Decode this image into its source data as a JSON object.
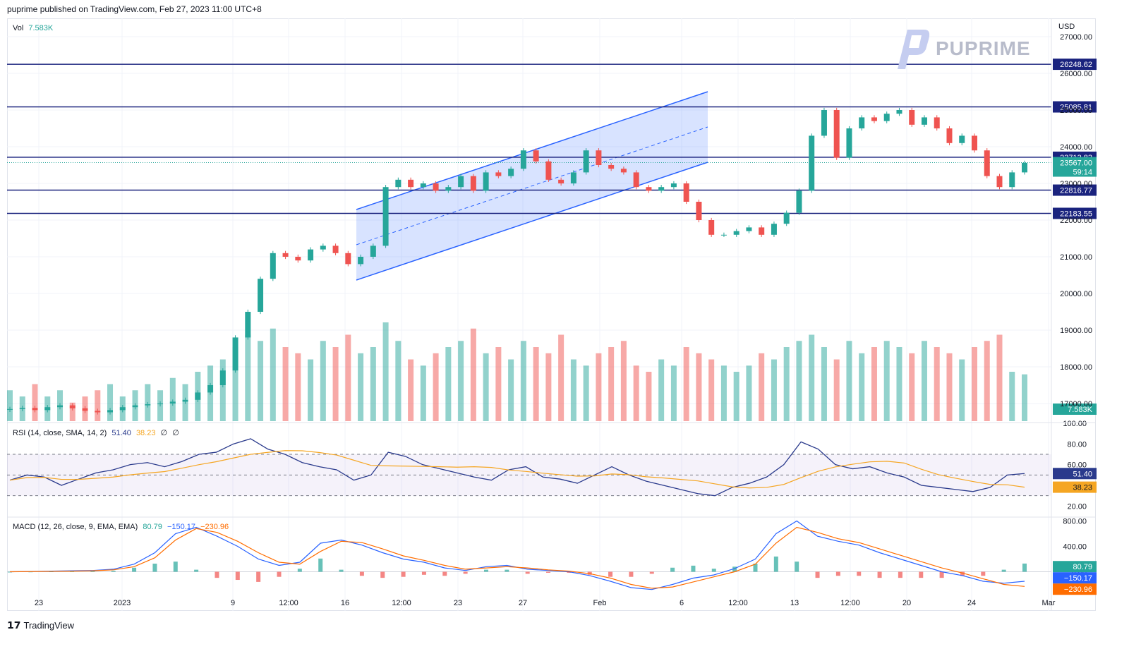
{
  "header": {
    "text": "puprime published on TradingView.com, Feb 27, 2023 11:00 UTC+8"
  },
  "brand": {
    "name": "PUPRIME"
  },
  "footer": {
    "text": "TradingView"
  },
  "vol_label": {
    "name": "Vol",
    "value": "7.583K"
  },
  "currency": "USD",
  "price_axis": [
    "27000.00",
    "26000.00",
    "25000.00",
    "24000.00",
    "23000.00",
    "22000.00",
    "21000.00",
    "20000.00",
    "19000.00",
    "18000.00",
    "17000.00"
  ],
  "levels": [
    {
      "value": 26248.62,
      "label": "26248.62"
    },
    {
      "value": 25085.81,
      "label": "25085.81"
    },
    {
      "value": 23713.83,
      "label": "23713.83"
    },
    {
      "value": 22816.77,
      "label": "22816.77"
    },
    {
      "value": 22183.55,
      "label": "22183.55"
    }
  ],
  "current_price": {
    "label": "23567.00",
    "countdown": "59:14",
    "value": 23567
  },
  "vol_badge": "7.583K",
  "x_axis": [
    {
      "label": "23",
      "x": 55
    },
    {
      "label": "2023",
      "x": 173
    },
    {
      "label": "9",
      "x": 330
    },
    {
      "label": "12:00",
      "x": 409
    },
    {
      "label": "16",
      "x": 489
    },
    {
      "label": "12:00",
      "x": 569
    },
    {
      "label": "23",
      "x": 649
    },
    {
      "label": "27",
      "x": 741
    },
    {
      "label": "Feb",
      "x": 850
    },
    {
      "label": "6",
      "x": 966
    },
    {
      "label": "12:00",
      "x": 1046
    },
    {
      "label": "13",
      "x": 1126
    },
    {
      "label": "12:00",
      "x": 1205
    },
    {
      "label": "20",
      "x": 1285
    },
    {
      "label": "24",
      "x": 1377
    },
    {
      "label": "Mar",
      "x": 1486
    }
  ],
  "rsi": {
    "title": "RSI (14, close, SMA, 14, 2)",
    "value": "51.40",
    "sma": "38.23",
    "extra1": "∅",
    "extra2": "∅",
    "axis": [
      "100.00",
      "80.00",
      "60.00",
      "40.00",
      "20.00"
    ],
    "badge_rsi": "51.40",
    "badge_sma": "38.23"
  },
  "macd": {
    "title": "MACD (12, 26, close, 9, EMA, EMA)",
    "hist": "80.79",
    "macd": "−150.17",
    "signal": "−230.96",
    "axis": [
      "800.00",
      "400.00",
      "0.00"
    ],
    "badge_hist": "80.79",
    "badge_macd": "−150.17",
    "badge_signal": "−230.96"
  },
  "colors": {
    "up": "#26a69a",
    "down": "#ef5350",
    "level": "#1a237e",
    "channel": "#2962ff",
    "rsi": "#2a3a8c",
    "rsi_sma": "#f5a623",
    "macd": "#2962ff",
    "signal": "#ff6d00"
  },
  "chart_data": {
    "type": "candlestick",
    "title": "",
    "ylim": [
      16500,
      27500
    ],
    "closes": [
      16850,
      16880,
      16820,
      16900,
      16950,
      16870,
      16800,
      16760,
      16820,
      16900,
      16950,
      16980,
      17000,
      17050,
      17100,
      17300,
      17500,
      17900,
      18800,
      19500,
      20400,
      21100,
      21000,
      20900,
      21200,
      21300,
      21100,
      20800,
      21000,
      21300,
      22900,
      23100,
      22900,
      23000,
      22800,
      22900,
      23200,
      22800,
      23300,
      23200,
      23400,
      23900,
      23600,
      23100,
      23000,
      23300,
      23900,
      23500,
      23400,
      23300,
      22900,
      22800,
      22900,
      23000,
      22500,
      22000,
      21600,
      21600,
      21700,
      21800,
      21600,
      21900,
      22200,
      22800,
      24300,
      25000,
      23700,
      24500,
      24800,
      24700,
      24900,
      25000,
      24600,
      24800,
      24500,
      24100,
      24300,
      23900,
      23200,
      22900,
      23300,
      23560
    ],
    "volume_k": [
      5,
      4,
      6,
      4,
      5,
      3,
      4,
      5,
      6,
      4,
      5,
      6,
      5,
      7,
      6,
      8,
      9,
      10,
      12,
      14,
      13,
      15,
      12,
      11,
      10,
      13,
      12,
      14,
      11,
      12,
      16,
      13,
      10,
      9,
      11,
      12,
      13,
      15,
      11,
      12,
      10,
      13,
      12,
      11,
      14,
      10,
      9,
      11,
      12,
      13,
      9,
      8,
      10,
      9,
      12,
      11,
      10,
      9,
      8,
      9,
      11,
      10,
      12,
      13,
      14,
      12,
      10,
      13,
      11,
      12,
      13,
      12,
      11,
      13,
      12,
      11,
      10,
      12,
      13,
      14,
      8,
      7.583
    ],
    "rsi": [
      45,
      50,
      48,
      40,
      46,
      52,
      55,
      60,
      62,
      58,
      63,
      70,
      72,
      80,
      85,
      75,
      70,
      62,
      58,
      55,
      45,
      50,
      72,
      68,
      60,
      56,
      52,
      48,
      45,
      55,
      58,
      48,
      46,
      42,
      50,
      58,
      50,
      44,
      40,
      36,
      32,
      30,
      38,
      42,
      48,
      60,
      82,
      75,
      60,
      56,
      58,
      52,
      48,
      40,
      38,
      36,
      34,
      38,
      50,
      51.4
    ],
    "macd": [
      0,
      5,
      10,
      15,
      20,
      40,
      120,
      300,
      600,
      700,
      560,
      400,
      200,
      100,
      150,
      450,
      500,
      420,
      300,
      200,
      150,
      60,
      20,
      80,
      100,
      40,
      20,
      0,
      -60,
      -150,
      -250,
      -280,
      -200,
      -100,
      -50,
      50,
      200,
      600,
      800,
      560,
      480,
      420,
      300,
      200,
      100,
      0,
      -60,
      -150,
      -180,
      -150.17
    ],
    "signal": [
      0,
      3,
      6,
      10,
      15,
      30,
      80,
      220,
      500,
      680,
      620,
      480,
      300,
      150,
      120,
      320,
      480,
      460,
      360,
      250,
      180,
      100,
      40,
      60,
      80,
      60,
      30,
      10,
      -30,
      -100,
      -200,
      -260,
      -240,
      -160,
      -80,
      0,
      120,
      450,
      700,
      620,
      520,
      460,
      360,
      260,
      160,
      60,
      -20,
      -110,
      -200,
      -230.96
    ]
  }
}
